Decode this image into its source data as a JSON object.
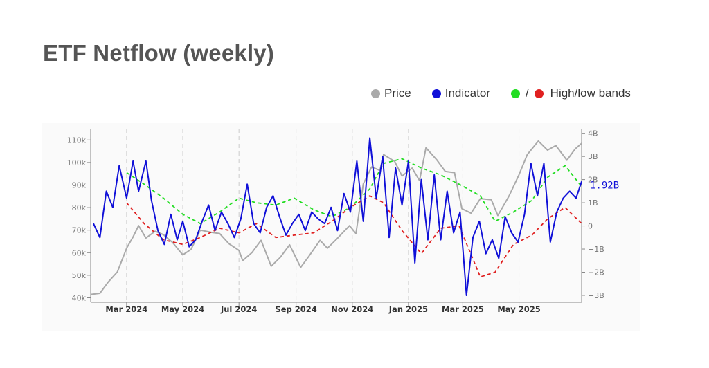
{
  "page": {
    "title": "ETF Netflow (weekly)"
  },
  "legend": {
    "price_label": "Price",
    "indicator_label": "Indicator",
    "bands_slash": "/",
    "bands_label": "High/low bands"
  },
  "colors": {
    "price": "#aaaaaa",
    "indicator": "#1010d8",
    "high_band": "#22dd22",
    "low_band": "#e02020",
    "grid": "#cccccc"
  },
  "chart_data": {
    "type": "line",
    "x_tick_labels": [
      "Mar 2024",
      "May 2024",
      "Jul 2024",
      "Sep 2024",
      "Nov 2024",
      "Jan 2025",
      "Mar 2025",
      "May 2025"
    ],
    "x_tick_dates": [
      "2024-03-01",
      "2024-05-01",
      "2024-07-01",
      "2024-09-01",
      "2024-11-01",
      "2025-01-01",
      "2025-03-01",
      "2025-05-01"
    ],
    "x_range": [
      "2024-01-22",
      "2025-07-08"
    ],
    "y_left": {
      "ticks": [
        "40k",
        "50k",
        "60k",
        "70k",
        "80k",
        "90k",
        "100k",
        "110k"
      ],
      "tick_values": [
        40000,
        50000,
        60000,
        70000,
        80000,
        90000,
        100000,
        110000
      ],
      "range": [
        38000,
        115000
      ]
    },
    "y_right": {
      "ticks": [
        "−3B",
        "−2B",
        "−1B",
        "0",
        "1B",
        "2B",
        "3B",
        "4B"
      ],
      "tick_values": [
        -3,
        -2,
        -1,
        0,
        1,
        2,
        3,
        4
      ],
      "range": [
        -3.3,
        4.2
      ]
    },
    "vertical_grid": "dashed at x ticks",
    "last_value_label": "1.92B",
    "series": [
      {
        "name": "Price",
        "axis": "left",
        "x": [
          "2024-01-22",
          "2024-02-01",
          "2024-02-10",
          "2024-02-20",
          "2024-03-01",
          "2024-03-08",
          "2024-03-14",
          "2024-03-22",
          "2024-04-01",
          "2024-04-10",
          "2024-04-20",
          "2024-05-01",
          "2024-05-10",
          "2024-05-20",
          "2024-06-01",
          "2024-06-10",
          "2024-06-20",
          "2024-07-01",
          "2024-07-05",
          "2024-07-15",
          "2024-07-25",
          "2024-08-05",
          "2024-08-15",
          "2024-08-25",
          "2024-09-06",
          "2024-09-15",
          "2024-09-27",
          "2024-10-05",
          "2024-10-15",
          "2024-10-29",
          "2024-11-05",
          "2024-11-13",
          "2024-11-22",
          "2024-12-01",
          "2024-12-05",
          "2024-12-17",
          "2024-12-25",
          "2025-01-05",
          "2025-01-13",
          "2025-01-20",
          "2025-02-01",
          "2025-02-10",
          "2025-02-20",
          "2025-02-28",
          "2025-03-10",
          "2025-03-20",
          "2025-04-01",
          "2025-04-08",
          "2025-04-20",
          "2025-05-01",
          "2025-05-10",
          "2025-05-22",
          "2025-06-01",
          "2025-06-10",
          "2025-06-22",
          "2025-07-01",
          "2025-07-08"
        ],
        "y": [
          41500,
          42000,
          47000,
          51500,
          62000,
          67000,
          72000,
          66500,
          69500,
          68000,
          64500,
          59000,
          61500,
          70000,
          69000,
          68500,
          64000,
          61000,
          56500,
          60000,
          65500,
          54000,
          58000,
          63500,
          53500,
          58500,
          65500,
          62000,
          66000,
          72000,
          68500,
          90500,
          98000,
          96500,
          103500,
          100500,
          94000,
          97500,
          92000,
          106500,
          101000,
          96000,
          95500,
          79500,
          77500,
          84000,
          83500,
          76500,
          85000,
          94500,
          103500,
          109500,
          105500,
          107500,
          101000,
          106000,
          108500
        ]
      },
      {
        "name": "Indicator",
        "axis": "right",
        "x": [
          "2024-01-25",
          "2024-02-01",
          "2024-02-08",
          "2024-02-15",
          "2024-02-22",
          "2024-03-01",
          "2024-03-08",
          "2024-03-14",
          "2024-03-22",
          "2024-03-28",
          "2024-04-04",
          "2024-04-11",
          "2024-04-18",
          "2024-04-25",
          "2024-05-01",
          "2024-05-08",
          "2024-05-15",
          "2024-05-22",
          "2024-05-29",
          "2024-06-05",
          "2024-06-12",
          "2024-06-19",
          "2024-06-26",
          "2024-07-03",
          "2024-07-10",
          "2024-07-17",
          "2024-07-24",
          "2024-07-31",
          "2024-08-07",
          "2024-08-14",
          "2024-08-21",
          "2024-08-28",
          "2024-09-04",
          "2024-09-11",
          "2024-09-18",
          "2024-09-25",
          "2024-10-02",
          "2024-10-09",
          "2024-10-16",
          "2024-10-23",
          "2024-10-30",
          "2024-11-06",
          "2024-11-13",
          "2024-11-20",
          "2024-11-27",
          "2024-12-04",
          "2024-12-11",
          "2024-12-18",
          "2024-12-25",
          "2025-01-01",
          "2025-01-08",
          "2025-01-15",
          "2025-01-22",
          "2025-01-29",
          "2025-02-05",
          "2025-02-12",
          "2025-02-19",
          "2025-02-26",
          "2025-03-05",
          "2025-03-12",
          "2025-03-19",
          "2025-03-26",
          "2025-04-02",
          "2025-04-09",
          "2025-04-16",
          "2025-04-23",
          "2025-04-30",
          "2025-05-07",
          "2025-05-14",
          "2025-05-21",
          "2025-05-28",
          "2025-06-04",
          "2025-06-11",
          "2025-06-18",
          "2025-06-25",
          "2025-07-02",
          "2025-07-08"
        ],
        "y": [
          0.1,
          -0.5,
          1.5,
          0.8,
          2.6,
          1.2,
          2.8,
          1.5,
          2.8,
          1.1,
          -0.2,
          -0.8,
          0.5,
          -0.6,
          0.2,
          -0.9,
          -0.6,
          0.2,
          0.9,
          -0.2,
          0.6,
          0.1,
          -0.5,
          0.3,
          1.8,
          0.1,
          -0.3,
          0.8,
          1.3,
          0.4,
          -0.4,
          0.1,
          0.5,
          -0.2,
          0.6,
          0.3,
          0.1,
          0.8,
          -0.2,
          1.4,
          0.6,
          2.8,
          0.2,
          3.8,
          1.2,
          3.0,
          -0.5,
          2.5,
          0.9,
          2.8,
          -1.6,
          2.0,
          -0.6,
          2.2,
          -0.6,
          1.5,
          -0.3,
          0.6,
          -3.0,
          -0.5,
          0.2,
          -1.2,
          -0.6,
          -1.4,
          0.4,
          -0.3,
          -0.7,
          0.5,
          2.7,
          1.3,
          2.7,
          -0.7,
          0.6,
          1.2,
          1.5,
          1.2,
          1.92
        ]
      },
      {
        "name": "High/low bands (high)",
        "axis": "right",
        "x": [
          "2024-03-01",
          "2024-03-20",
          "2024-04-10",
          "2024-05-01",
          "2024-05-20",
          "2024-06-10",
          "2024-07-01",
          "2024-07-20",
          "2024-08-10",
          "2024-08-30",
          "2024-09-20",
          "2024-10-10",
          "2024-10-30",
          "2024-11-20",
          "2024-12-05",
          "2024-12-25",
          "2025-01-15",
          "2025-02-05",
          "2025-02-25",
          "2025-03-20",
          "2025-04-05",
          "2025-04-25",
          "2025-05-15",
          "2025-06-01",
          "2025-06-20",
          "2025-07-08"
        ],
        "y": [
          2.3,
          1.8,
          1.2,
          0.5,
          0.1,
          0.6,
          1.2,
          1.0,
          0.9,
          1.2,
          0.7,
          0.4,
          0.8,
          1.6,
          2.7,
          2.9,
          2.5,
          2.2,
          1.8,
          1.3,
          0.2,
          0.6,
          1.1,
          2.1,
          2.6,
          1.7
        ]
      },
      {
        "name": "High/low bands (low)",
        "axis": "right",
        "x": [
          "2024-03-01",
          "2024-03-20",
          "2024-04-10",
          "2024-05-01",
          "2024-05-20",
          "2024-06-10",
          "2024-07-01",
          "2024-07-20",
          "2024-08-10",
          "2024-08-30",
          "2024-09-20",
          "2024-10-10",
          "2024-10-30",
          "2024-11-20",
          "2024-12-05",
          "2024-12-25",
          "2025-01-15",
          "2025-02-05",
          "2025-02-25",
          "2025-03-20",
          "2025-04-05",
          "2025-04-25",
          "2025-05-15",
          "2025-06-01",
          "2025-06-20",
          "2025-07-08"
        ],
        "y": [
          1.0,
          0.1,
          -0.6,
          -0.8,
          -0.5,
          -0.1,
          -0.3,
          0.1,
          -0.5,
          -0.4,
          -0.3,
          0.2,
          0.8,
          1.3,
          1.0,
          -0.2,
          -1.2,
          -0.1,
          0.0,
          -2.2,
          -2.0,
          -0.8,
          -0.4,
          0.3,
          0.8,
          0.1
        ]
      }
    ]
  }
}
